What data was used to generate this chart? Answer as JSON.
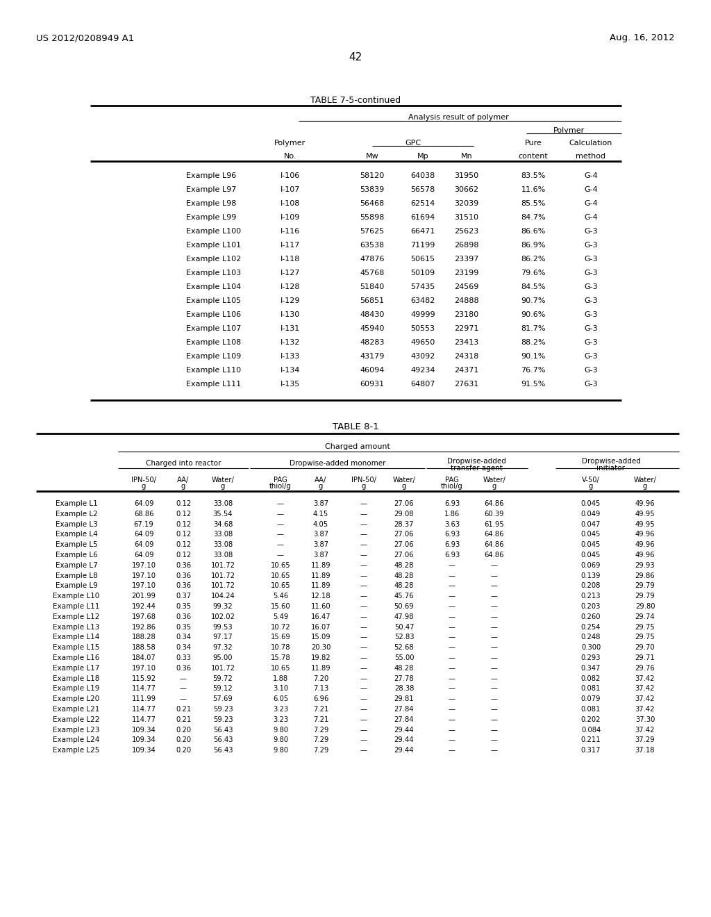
{
  "page_number": "42",
  "left_header": "US 2012/0208949 A1",
  "right_header": "Aug. 16, 2012",
  "table1_title": "TABLE 7-5-continued",
  "table1_data": [
    [
      "Example L96",
      "I-106",
      "58120",
      "64038",
      "31950",
      "83.5%",
      "G-4"
    ],
    [
      "Example L97",
      "I-107",
      "53839",
      "56578",
      "30662",
      "11.6%",
      "G-4"
    ],
    [
      "Example L98",
      "I-108",
      "56468",
      "62514",
      "32039",
      "85.5%",
      "G-4"
    ],
    [
      "Example L99",
      "I-109",
      "55898",
      "61694",
      "31510",
      "84.7%",
      "G-4"
    ],
    [
      "Example L100",
      "I-116",
      "57625",
      "66471",
      "25623",
      "86.6%",
      "G-3"
    ],
    [
      "Example L101",
      "I-117",
      "63538",
      "71199",
      "26898",
      "86.9%",
      "G-3"
    ],
    [
      "Example L102",
      "I-118",
      "47876",
      "50615",
      "23397",
      "86.2%",
      "G-3"
    ],
    [
      "Example L103",
      "I-127",
      "45768",
      "50109",
      "23199",
      "79.6%",
      "G-3"
    ],
    [
      "Example L104",
      "I-128",
      "51840",
      "57435",
      "24569",
      "84.5%",
      "G-3"
    ],
    [
      "Example L105",
      "I-129",
      "56851",
      "63482",
      "24888",
      "90.7%",
      "G-3"
    ],
    [
      "Example L106",
      "I-130",
      "48430",
      "49999",
      "23180",
      "90.6%",
      "G-3"
    ],
    [
      "Example L107",
      "I-131",
      "45940",
      "50553",
      "22971",
      "81.7%",
      "G-3"
    ],
    [
      "Example L108",
      "I-132",
      "48283",
      "49650",
      "23413",
      "88.2%",
      "G-3"
    ],
    [
      "Example L109",
      "I-133",
      "43179",
      "43092",
      "24318",
      "90.1%",
      "G-3"
    ],
    [
      "Example L110",
      "I-134",
      "46094",
      "49234",
      "24371",
      "76.7%",
      "G-3"
    ],
    [
      "Example L111",
      "I-135",
      "60931",
      "64807",
      "27631",
      "91.5%",
      "G-3"
    ]
  ],
  "table2_title": "TABLE 8-1",
  "table2_data": [
    [
      "Example L1",
      "64.09",
      "0.12",
      "33.08",
      "—",
      "3.87",
      "—",
      "27.06",
      "6.93",
      "64.86",
      "0.045",
      "49.96"
    ],
    [
      "Example L2",
      "68.86",
      "0.12",
      "35.54",
      "—",
      "4.15",
      "—",
      "29.08",
      "1.86",
      "60.39",
      "0.049",
      "49.95"
    ],
    [
      "Example L3",
      "67.19",
      "0.12",
      "34.68",
      "—",
      "4.05",
      "—",
      "28.37",
      "3.63",
      "61.95",
      "0.047",
      "49.95"
    ],
    [
      "Example L4",
      "64.09",
      "0.12",
      "33.08",
      "—",
      "3.87",
      "—",
      "27.06",
      "6.93",
      "64.86",
      "0.045",
      "49.96"
    ],
    [
      "Example L5",
      "64.09",
      "0.12",
      "33.08",
      "—",
      "3.87",
      "—",
      "27.06",
      "6.93",
      "64.86",
      "0.045",
      "49.96"
    ],
    [
      "Example L6",
      "64.09",
      "0.12",
      "33.08",
      "—",
      "3.87",
      "—",
      "27.06",
      "6.93",
      "64.86",
      "0.045",
      "49.96"
    ],
    [
      "Example L7",
      "197.10",
      "0.36",
      "101.72",
      "10.65",
      "11.89",
      "—",
      "48.28",
      "—",
      "—",
      "0.069",
      "29.93"
    ],
    [
      "Example L8",
      "197.10",
      "0.36",
      "101.72",
      "10.65",
      "11.89",
      "—",
      "48.28",
      "—",
      "—",
      "0.139",
      "29.86"
    ],
    [
      "Example L9",
      "197.10",
      "0.36",
      "101.72",
      "10.65",
      "11.89",
      "—",
      "48.28",
      "—",
      "—",
      "0.208",
      "29.79"
    ],
    [
      "Example L10",
      "201.99",
      "0.37",
      "104.24",
      "5.46",
      "12.18",
      "—",
      "45.76",
      "—",
      "—",
      "0.213",
      "29.79"
    ],
    [
      "Example L11",
      "192.44",
      "0.35",
      "99.32",
      "15.60",
      "11.60",
      "—",
      "50.69",
      "—",
      "—",
      "0.203",
      "29.80"
    ],
    [
      "Example L12",
      "197.68",
      "0.36",
      "102.02",
      "5.49",
      "16.47",
      "—",
      "47.98",
      "—",
      "—",
      "0.260",
      "29.74"
    ],
    [
      "Example L13",
      "192.86",
      "0.35",
      "99.53",
      "10.72",
      "16.07",
      "—",
      "50.47",
      "—",
      "—",
      "0.254",
      "29.75"
    ],
    [
      "Example L14",
      "188.28",
      "0.34",
      "97.17",
      "15.69",
      "15.09",
      "—",
      "52.83",
      "—",
      "—",
      "0.248",
      "29.75"
    ],
    [
      "Example L15",
      "188.58",
      "0.34",
      "97.32",
      "10.78",
      "20.30",
      "—",
      "52.68",
      "—",
      "—",
      "0.300",
      "29.70"
    ],
    [
      "Example L16",
      "184.07",
      "0.33",
      "95.00",
      "15.78",
      "19.82",
      "—",
      "55.00",
      "—",
      "—",
      "0.293",
      "29.71"
    ],
    [
      "Example L17",
      "197.10",
      "0.36",
      "101.72",
      "10.65",
      "11.89",
      "—",
      "48.28",
      "—",
      "—",
      "0.347",
      "29.76"
    ],
    [
      "Example L18",
      "115.92",
      "—",
      "59.72",
      "1.88",
      "7.20",
      "—",
      "27.78",
      "—",
      "—",
      "0.082",
      "37.42"
    ],
    [
      "Example L19",
      "114.77",
      "—",
      "59.12",
      "3.10",
      "7.13",
      "—",
      "28.38",
      "—",
      "—",
      "0.081",
      "37.42"
    ],
    [
      "Example L20",
      "111.99",
      "—",
      "57.69",
      "6.05",
      "6.96",
      "—",
      "29.81",
      "—",
      "—",
      "0.079",
      "37.42"
    ],
    [
      "Example L21",
      "114.77",
      "0.21",
      "59.23",
      "3.23",
      "7.21",
      "—",
      "27.84",
      "—",
      "—",
      "0.081",
      "37.42"
    ],
    [
      "Example L22",
      "114.77",
      "0.21",
      "59.23",
      "3.23",
      "7.21",
      "—",
      "27.84",
      "—",
      "—",
      "0.202",
      "37.30"
    ],
    [
      "Example L23",
      "109.34",
      "0.20",
      "56.43",
      "9.80",
      "7.29",
      "—",
      "29.44",
      "—",
      "—",
      "0.084",
      "37.42"
    ],
    [
      "Example L24",
      "109.34",
      "0.20",
      "56.43",
      "9.80",
      "7.29",
      "—",
      "29.44",
      "—",
      "—",
      "0.211",
      "37.29"
    ],
    [
      "Example L25",
      "109.34",
      "0.20",
      "56.43",
      "9.80",
      "7.29",
      "—",
      "29.44",
      "—",
      "—",
      "0.317",
      "37.18"
    ]
  ]
}
